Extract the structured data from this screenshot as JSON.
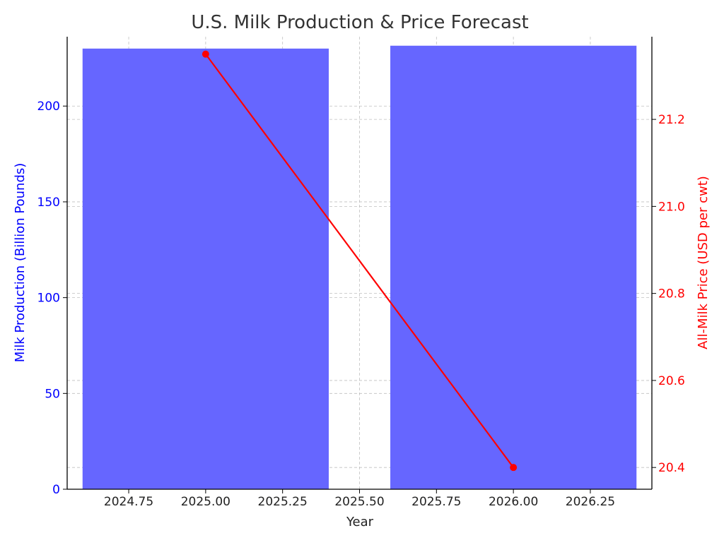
{
  "chart_data": {
    "type": "bar",
    "title": "U.S. Milk Production & Price Forecast",
    "xlabel": "Year",
    "ylabel_left": "Milk Production (Billion Pounds)",
    "ylabel_right": "All-Milk Price (USD per cwt)",
    "xlim": [
      2024.55,
      2026.45
    ],
    "ylim_left": [
      0,
      236.2
    ],
    "ylim_right": [
      20.35,
      21.39
    ],
    "x_ticks": [
      2024.75,
      2025.0,
      2025.25,
      2025.5,
      2025.75,
      2026.0,
      2026.25
    ],
    "x_tick_labels": [
      "2024.75",
      "2025.00",
      "2025.25",
      "2025.50",
      "2025.75",
      "2026.00",
      "2026.25"
    ],
    "y_left_ticks": [
      0,
      50,
      100,
      150,
      200
    ],
    "y_left_tick_labels": [
      "0",
      "50",
      "100",
      "150",
      "200"
    ],
    "y_right_ticks": [
      20.4,
      20.6,
      20.8,
      21.0,
      21.2
    ],
    "y_right_tick_labels": [
      "20.4",
      "20.6",
      "20.8",
      "21.0",
      "21.2"
    ],
    "grid": true,
    "series": [
      {
        "kind": "bar",
        "axis": "left",
        "color": "#6666ff",
        "x": [
          2025.0,
          2026.0
        ],
        "bar_width": 0.8,
        "values": [
          230.0,
          231.5
        ]
      },
      {
        "kind": "line",
        "axis": "right",
        "color": "#ff0000",
        "x": [
          2025.0,
          2026.0
        ],
        "values": [
          21.35,
          20.4
        ]
      }
    ],
    "colors": {
      "left_axis": "#0000ff",
      "right_axis": "#ff0000",
      "title": "#333333",
      "grid": "#b0b0b0"
    }
  }
}
